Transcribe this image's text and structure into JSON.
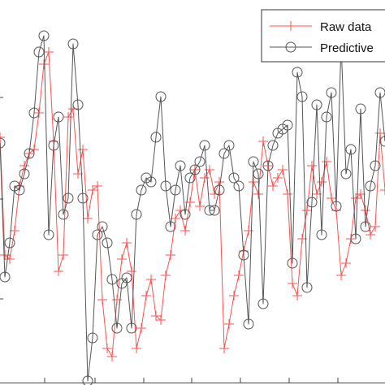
{
  "chart_data": {
    "type": "line",
    "title": "",
    "xlabel": "",
    "ylabel": "",
    "xlim": [
      0,
      79
    ],
    "ylim": [
      0,
      474
    ],
    "grid": false,
    "legend": {
      "placement": "top-right"
    },
    "colors": {
      "raw": "#ff5050",
      "predictive": "#555555",
      "axis": "#444444",
      "legend_border": "#333333"
    },
    "series": [
      {
        "name": "Raw data",
        "marker": "plus",
        "color": "#ff5050",
        "x": [
          0,
          1,
          2,
          3,
          4,
          5,
          6,
          7,
          8,
          9,
          10,
          11,
          12,
          13,
          14,
          15,
          16,
          17,
          18,
          19,
          20,
          21,
          22,
          23,
          24,
          25,
          26,
          27,
          28,
          29,
          30,
          31,
          32,
          33,
          34,
          35,
          36,
          37,
          38,
          39,
          40,
          41,
          42,
          43,
          44,
          45,
          46,
          47,
          48,
          49,
          50,
          51,
          52,
          53,
          54,
          55,
          56,
          57,
          58,
          59,
          60,
          61,
          62,
          63,
          64,
          65,
          66,
          67,
          68,
          69,
          70,
          71,
          72,
          73,
          74,
          75,
          76,
          77,
          78,
          79
        ],
        "values": [
          305,
          160,
          155,
          190,
          245,
          270,
          285,
          290,
          335,
          395,
          410,
          300,
          140,
          160,
          330,
          340,
          260,
          290,
          205,
          240,
          245,
          105,
          45,
          35,
          105,
          155,
          175,
          140,
          45,
          70,
          110,
          130,
          85,
          80,
          135,
          160,
          205,
          215,
          190,
          225,
          265,
          220,
          255,
          265,
          235,
          250,
          45,
          75,
          110,
          135,
          165,
          190,
          250,
          235,
          300,
          270,
          245,
          255,
          265,
          235,
          125,
          110,
          180,
          215,
          270,
          235,
          250,
          275,
          230,
          215,
          135,
          150,
          180,
          230,
          235,
          215,
          185,
          195,
          310,
          240
        ]
      },
      {
        "name": "Predictive",
        "marker": "circle",
        "color": "#555555",
        "x": [
          0,
          1,
          2,
          3,
          4,
          5,
          6,
          7,
          8,
          9,
          10,
          11,
          12,
          13,
          14,
          15,
          16,
          17,
          18,
          19,
          20,
          21,
          22,
          23,
          24,
          25,
          26,
          27,
          28,
          29,
          30,
          31,
          32,
          33,
          34,
          35,
          36,
          37,
          38,
          39,
          40,
          41,
          42,
          43,
          44,
          45,
          46,
          47,
          48,
          49,
          50,
          51,
          52,
          53,
          54,
          55,
          56,
          57,
          58,
          59,
          60,
          61,
          62,
          63,
          64,
          65,
          66,
          67,
          68,
          69,
          70,
          71,
          72,
          73,
          74,
          75,
          76,
          77,
          78,
          79
        ],
        "values": [
          298,
          133,
          175,
          245,
          240,
          260,
          285,
          335,
          410,
          430,
          185,
          295,
          330,
          210,
          230,
          420,
          345,
          230,
          5,
          58,
          185,
          195,
          175,
          130,
          70,
          125,
          132,
          70,
          210,
          240,
          255,
          250,
          305,
          355,
          245,
          195,
          240,
          270,
          210,
          255,
          265,
          275,
          295,
          215,
          215,
          240,
          285,
          295,
          255,
          245,
          160,
          75,
          275,
          260,
          100,
          270,
          295,
          310,
          315,
          320,
          150,
          385,
          355,
          120,
          225,
          345,
          185,
          330,
          360,
          220,
          420,
          260,
          290,
          180,
          340,
          195,
          245,
          270,
          360,
          300
        ]
      }
    ]
  },
  "legend": {
    "items": [
      {
        "label": "Raw data"
      },
      {
        "label": "Predictive"
      }
    ]
  }
}
